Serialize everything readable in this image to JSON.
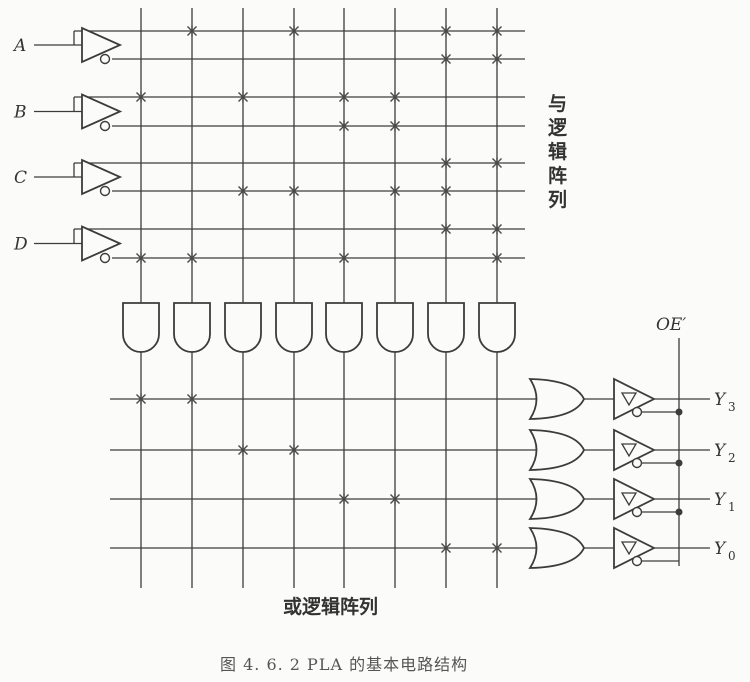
{
  "inputs": [
    "A",
    "B",
    "C",
    "D"
  ],
  "outputs": [
    {
      "base": "Y",
      "sub": "3"
    },
    {
      "base": "Y",
      "sub": "2"
    },
    {
      "base": "Y",
      "sub": "1"
    },
    {
      "base": "Y",
      "sub": "0"
    }
  ],
  "enable_label": "OE′",
  "and_array_label": [
    "与",
    "逻",
    "辑",
    "阵",
    "列"
  ],
  "or_array_label": "或逻辑阵列",
  "caption": "图 4. 6. 2   PLA 的基本电路结构",
  "and_connections": [
    [
      0,
      1,
      0,
      2
    ],
    [
      1,
      0,
      0,
      2
    ],
    [
      0,
      1,
      2,
      0
    ],
    [
      1,
      0,
      2,
      0
    ],
    [
      0,
      3,
      0,
      2
    ],
    [
      0,
      3,
      2,
      0
    ],
    [
      3,
      0,
      3,
      1
    ],
    [
      3,
      0,
      1,
      3
    ]
  ],
  "and_connections_legend": "per AND gate, per input A..D: 0 = no connection, 1 = true line, 2 = complement line, 3 = both",
  "or_connections": [
    [
      0,
      1
    ],
    [
      2,
      3
    ],
    [
      4,
      5
    ],
    [
      6,
      7
    ]
  ]
}
